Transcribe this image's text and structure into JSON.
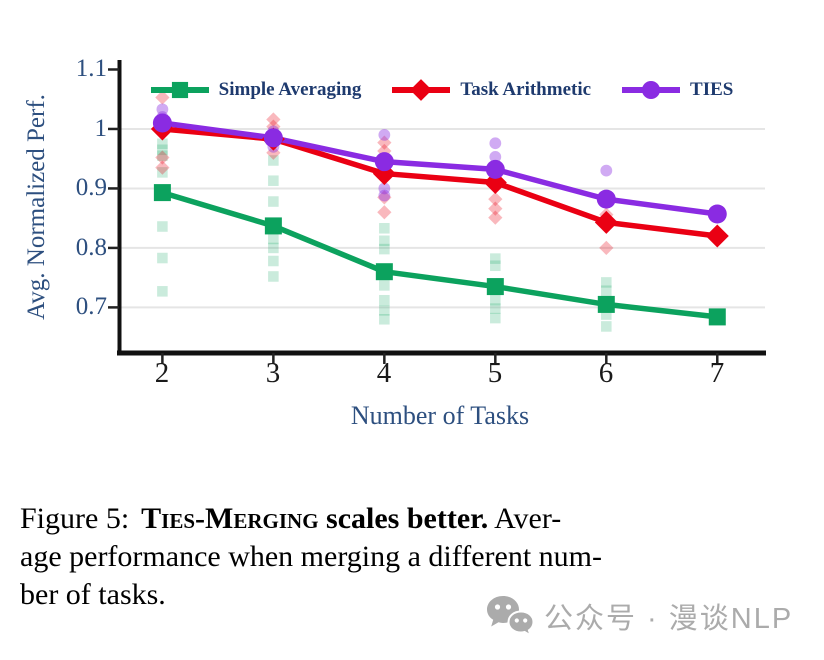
{
  "chart_data": {
    "type": "line",
    "x": [
      2,
      3,
      4,
      5,
      6,
      7
    ],
    "xlabel": "Number of Tasks",
    "ylabel": "Avg. Normalized Perf.",
    "xlim": [
      1.6,
      7.43
    ],
    "ylim": [
      0.625,
      1.1025
    ],
    "xticks": [
      "2",
      "3",
      "4",
      "5",
      "6",
      "7"
    ],
    "yticks": [
      {
        "v": 1.1,
        "label": "1.1"
      },
      {
        "v": 1.0,
        "label": "1"
      },
      {
        "v": 0.9,
        "label": "0.9"
      },
      {
        "v": 0.8,
        "label": "0.8"
      },
      {
        "v": 0.7,
        "label": "0.7"
      }
    ],
    "gridlines": [
      0.7,
      0.8,
      0.9,
      1.0
    ],
    "grid_on": true,
    "grid_color": "#e5e5e5",
    "axis_text_color": "#2d4f7f",
    "xtick_color": "#1a1a1a",
    "legend_position": "upper center",
    "legend_text_color": "#1e3a6e",
    "series": [
      {
        "name": "Simple Averaging",
        "marker": "square",
        "color": "#0ca25e",
        "values": [
          0.893,
          0.837,
          0.76,
          0.735,
          0.705,
          0.684
        ]
      },
      {
        "name": "Task Arithmetic",
        "marker": "diamond",
        "color": "#ea0013",
        "values": [
          1.0,
          0.983,
          0.925,
          0.91,
          0.843,
          0.82
        ]
      },
      {
        "name": "TIES",
        "marker": "circle",
        "color": "#8a2be2",
        "values": [
          1.01,
          0.985,
          0.945,
          0.932,
          0.882,
          0.857
        ]
      }
    ],
    "scatter": [
      {
        "series": "Simple Averaging",
        "opacity": 0.22,
        "points": [
          [
            2,
            0.975
          ],
          [
            2,
            0.965
          ],
          [
            2,
            0.955
          ],
          [
            2,
            0.927
          ],
          [
            2,
            0.836
          ],
          [
            2,
            0.783
          ],
          [
            2,
            0.727
          ],
          [
            3,
            0.947
          ],
          [
            3,
            0.913
          ],
          [
            3,
            0.878
          ],
          [
            3,
            0.815
          ],
          [
            3,
            0.8
          ],
          [
            3,
            0.778
          ],
          [
            3,
            0.752
          ],
          [
            4,
            0.833
          ],
          [
            4,
            0.812
          ],
          [
            4,
            0.798
          ],
          [
            4,
            0.737
          ],
          [
            4,
            0.712
          ],
          [
            4,
            0.695
          ],
          [
            4,
            0.68
          ],
          [
            5,
            0.782
          ],
          [
            5,
            0.77
          ],
          [
            5,
            0.712
          ],
          [
            5,
            0.698
          ],
          [
            5,
            0.682
          ],
          [
            6,
            0.742
          ],
          [
            6,
            0.728
          ],
          [
            6,
            0.688
          ],
          [
            6,
            0.668
          ]
        ]
      },
      {
        "series": "Task Arithmetic",
        "opacity": 0.28,
        "points": [
          [
            2,
            1.053
          ],
          [
            2,
            0.952
          ],
          [
            2,
            0.935
          ],
          [
            3,
            1.016
          ],
          [
            3,
            1.004
          ],
          [
            3,
            0.96
          ],
          [
            4,
            0.977
          ],
          [
            4,
            0.963
          ],
          [
            4,
            0.885
          ],
          [
            4,
            0.86
          ],
          [
            5,
            0.882
          ],
          [
            5,
            0.866
          ],
          [
            5,
            0.851
          ],
          [
            6,
            0.856
          ],
          [
            6,
            0.8
          ]
        ]
      },
      {
        "series": "TIES",
        "opacity": 0.4,
        "points": [
          [
            2,
            1.033
          ],
          [
            2,
            1.02
          ],
          [
            3,
            0.996
          ],
          [
            3,
            0.97
          ],
          [
            4,
            0.99
          ],
          [
            4,
            0.9
          ],
          [
            4,
            0.888
          ],
          [
            5,
            0.976
          ],
          [
            5,
            0.953
          ],
          [
            6,
            0.93
          ]
        ]
      }
    ]
  },
  "caption": {
    "fig_label": "Figure 5:",
    "method_name": "Ties-Merging",
    "claim": " scales better.",
    "line1_tail": " Aver-",
    "line2": "age performance when merging a different num-",
    "line3": "ber of tasks."
  },
  "watermark": {
    "text": "公众号 · 漫谈NLP",
    "color": "#ababab"
  }
}
